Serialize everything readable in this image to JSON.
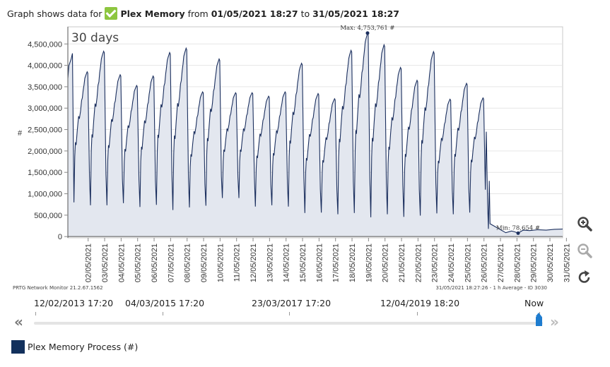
{
  "header": {
    "prefix": "Graph shows data for",
    "sensor": "Plex Memory",
    "from_word": "from",
    "from_date": "01/05/2021 18:27",
    "to_word": "to",
    "to_date": "31/05/2021 18:27"
  },
  "colors": {
    "line": "#1b2f5e",
    "fill": "#e3e7ef",
    "check": "#8dc63f",
    "accent": "#1e7ccf"
  },
  "chart_data": {
    "type": "area",
    "period_label": "30 days",
    "ylabel": "#",
    "ylim": [
      -30000,
      4900000
    ],
    "y_ticks": [
      0,
      500000,
      1000000,
      1500000,
      2000000,
      2500000,
      3000000,
      3500000,
      4000000,
      4500000
    ],
    "y_tick_labels": [
      "0",
      "500,000",
      "1,000,000",
      "1,500,000",
      "2,000,000",
      "2,500,000",
      "3,000,000",
      "3,500,000",
      "4,000,000",
      "4,500,000"
    ],
    "x_tick_labels": [
      "02/05/2021",
      "03/05/2021",
      "04/05/2021",
      "05/05/2021",
      "06/05/2021",
      "07/05/2021",
      "08/05/2021",
      "09/05/2021",
      "10/05/2021",
      "11/05/2021",
      "12/05/2021",
      "13/05/2021",
      "14/05/2021",
      "15/05/2021",
      "16/05/2021",
      "17/05/2021",
      "18/05/2021",
      "19/05/2021",
      "20/05/2021",
      "21/05/2021",
      "22/05/2021",
      "23/05/2021",
      "24/05/2021",
      "25/05/2021",
      "26/05/2021",
      "27/05/2021",
      "28/05/2021",
      "29/05/2021",
      "30/05/2021",
      "31/05/2021"
    ],
    "x_tick_days": [
      1.23,
      2.23,
      3.23,
      4.23,
      5.23,
      6.23,
      7.23,
      8.23,
      9.23,
      10.23,
      11.23,
      12.23,
      13.23,
      14.23,
      15.23,
      16.23,
      17.23,
      18.23,
      19.23,
      20.23,
      21.23,
      22.23,
      23.23,
      24.23,
      25.23,
      26.23,
      27.23,
      28.23,
      29.23,
      30.23
    ],
    "x_range_days": [
      0,
      30
    ],
    "daily_cycles": [
      {
        "day_start": 0.0,
        "low": 3700000,
        "peak": 4280000
      },
      {
        "day_start": 0.35,
        "low": 800000,
        "peak": 3850000
      },
      {
        "day_start": 1.35,
        "low": 730000,
        "peak": 4330000
      },
      {
        "day_start": 2.35,
        "low": 730000,
        "peak": 3780000
      },
      {
        "day_start": 3.35,
        "low": 780000,
        "peak": 3530000
      },
      {
        "day_start": 4.35,
        "low": 690000,
        "peak": 3750000
      },
      {
        "day_start": 5.35,
        "low": 740000,
        "peak": 4300000
      },
      {
        "day_start": 6.35,
        "low": 620000,
        "peak": 4400000
      },
      {
        "day_start": 7.35,
        "low": 680000,
        "peak": 3380000
      },
      {
        "day_start": 8.35,
        "low": 720000,
        "peak": 4150000
      },
      {
        "day_start": 9.35,
        "low": 900000,
        "peak": 3360000
      },
      {
        "day_start": 10.35,
        "low": 900000,
        "peak": 3360000
      },
      {
        "day_start": 11.35,
        "low": 700000,
        "peak": 3280000
      },
      {
        "day_start": 12.35,
        "low": 730000,
        "peak": 3380000
      },
      {
        "day_start": 13.35,
        "low": 700000,
        "peak": 4050000
      },
      {
        "day_start": 14.35,
        "low": 550000,
        "peak": 3340000
      },
      {
        "day_start": 15.35,
        "low": 560000,
        "peak": 3220000
      },
      {
        "day_start": 16.35,
        "low": 520000,
        "peak": 4350000
      },
      {
        "day_start": 17.35,
        "low": 550000,
        "peak": 4753761
      },
      {
        "day_start": 18.35,
        "low": 450000,
        "peak": 4480000
      },
      {
        "day_start": 19.35,
        "low": 520000,
        "peak": 3950000
      },
      {
        "day_start": 20.35,
        "low": 460000,
        "peak": 3650000
      },
      {
        "day_start": 21.35,
        "low": 490000,
        "peak": 4320000
      },
      {
        "day_start": 22.35,
        "low": 540000,
        "peak": 3210000
      },
      {
        "day_start": 23.35,
        "low": 520000,
        "peak": 3580000
      },
      {
        "day_start": 24.35,
        "low": 560000,
        "peak": 3240000
      },
      {
        "day_start": 25.35,
        "low": 450000,
        "peak": 1300000
      }
    ],
    "tail": [
      {
        "x": 26.55,
        "y": 90000
      },
      {
        "x": 26.9,
        "y": 130000
      },
      {
        "x": 27.1,
        "y": 110000
      },
      {
        "x": 27.3,
        "y": 78654
      },
      {
        "x": 27.6,
        "y": 150000
      },
      {
        "x": 28.0,
        "y": 140000
      },
      {
        "x": 28.5,
        "y": 160000
      },
      {
        "x": 29.0,
        "y": 150000
      },
      {
        "x": 29.5,
        "y": 170000
      },
      {
        "x": 30.0,
        "y": 175000
      }
    ],
    "max": {
      "label": "Max: 4,753,761 #",
      "value": 4753761
    },
    "min": {
      "label": "Min: 78,654 #",
      "value": 78654
    },
    "footer_left": "PRTG Network Monitor 21.2.67.1562",
    "footer_right": "31/05/2021 18:27:26 - 1 h Average - ID 3030"
  },
  "timeline": {
    "labels": [
      "12/02/2013 17:20",
      "04/03/2015 17:20",
      "23/03/2017 17:20",
      "12/04/2019 18:20",
      "Now"
    ],
    "left_arrow": "«",
    "right_arrow": "»"
  },
  "legend": {
    "label": "Plex Memory Process  (#)"
  },
  "icons": [
    "zoom-in-icon",
    "zoom-out-icon",
    "refresh-icon"
  ]
}
